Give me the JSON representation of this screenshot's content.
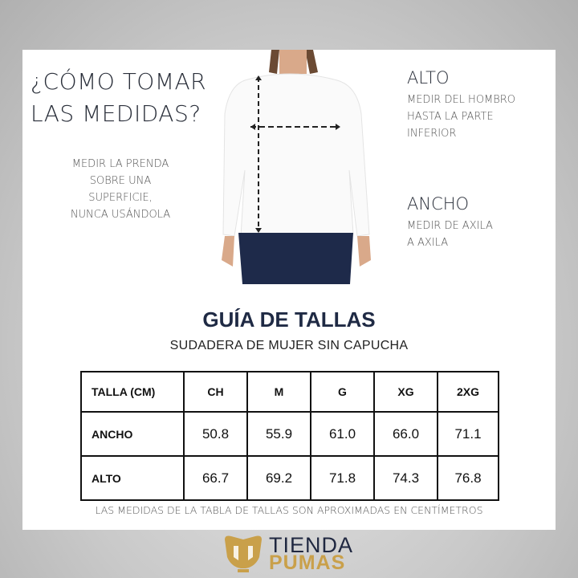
{
  "heading": {
    "line1": "¿CÓMO TOMAR",
    "line2": "LAS MEDIDAS?"
  },
  "instruction": [
    "MEDIR LA PRENDA",
    "SOBRE UNA",
    "SUPERFICIE,",
    "NUNCA USÁNDOLA"
  ],
  "alto": {
    "label": "ALTO",
    "desc": [
      "MEDIR DEL HOMBRO",
      "HASTA LA PARTE",
      "INFERIOR"
    ]
  },
  "ancho": {
    "label": "ANCHO",
    "desc": [
      "MEDIR DE AXILA",
      "A AXILA"
    ]
  },
  "guide": {
    "title": "GUÍA DE TALLAS",
    "subtitle": "SUDADERA DE MUJER SIN CAPUCHA"
  },
  "table": {
    "header": [
      "TALLA (CM)",
      "CH",
      "M",
      "G",
      "XG",
      "2XG"
    ],
    "rows": [
      {
        "label": "ANCHO",
        "values": [
          "50.8",
          "55.9",
          "61.0",
          "66.0",
          "71.1"
        ]
      },
      {
        "label": "ALTO",
        "values": [
          "66.7",
          "69.2",
          "71.8",
          "74.3",
          "76.8"
        ]
      }
    ]
  },
  "footnote": "LAS MEDIDAS DE LA TABLA DE TALLAS SON APROXIMADAS EN CENTÍMETROS",
  "logo": {
    "line1": "TIENDA",
    "line2": "PUMAS"
  },
  "colors": {
    "navy": "#1f2a44",
    "gold": "#c9a04a"
  }
}
